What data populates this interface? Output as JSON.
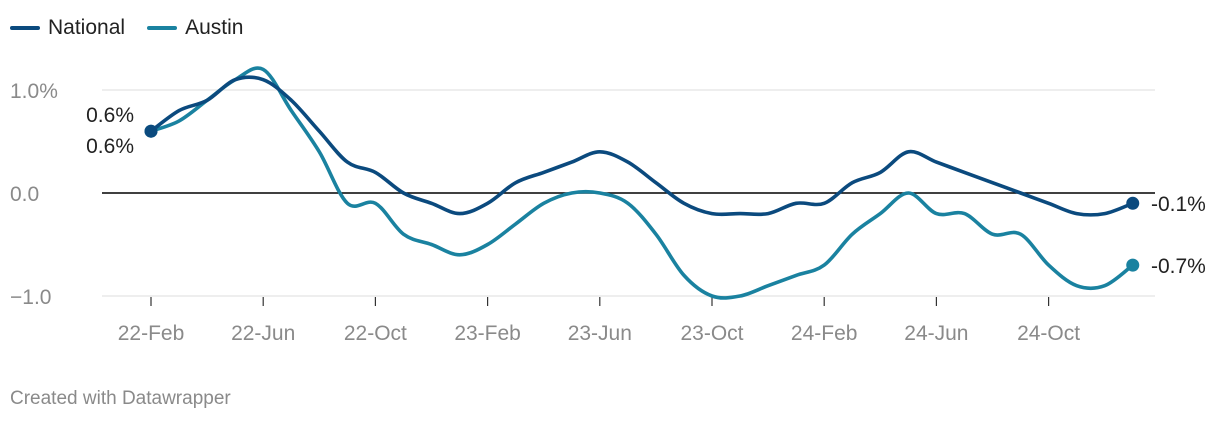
{
  "chart_data": {
    "type": "line",
    "x_tick_labels": [
      "22-Feb",
      "22-Jun",
      "22-Oct",
      "23-Feb",
      "23-Jun",
      "23-Oct",
      "24-Feb",
      "24-Jun",
      "24-Oct"
    ],
    "y_tick_labels": [
      "1.0%",
      "0.0",
      "−1.0"
    ],
    "y_ticks": [
      1.0,
      0.0,
      -1.0
    ],
    "ylim": [
      -1.0,
      1.25
    ],
    "xlim": [
      0,
      35.5
    ],
    "grid": true,
    "legend_position": "top-left",
    "series": [
      {
        "name": "National",
        "color": "#0b4a7e",
        "x": [
          0,
          1,
          2,
          3,
          4,
          5,
          6,
          7,
          8,
          9,
          10,
          11,
          12,
          13,
          14,
          15,
          16,
          17,
          18,
          19,
          20,
          21,
          22,
          23,
          24,
          25,
          26,
          27,
          28,
          29,
          30,
          31,
          32,
          33,
          34,
          35
        ],
        "values": [
          0.6,
          0.8,
          0.9,
          1.1,
          1.1,
          0.9,
          0.6,
          0.3,
          0.2,
          0.0,
          -0.1,
          -0.2,
          -0.1,
          0.1,
          0.2,
          0.3,
          0.4,
          0.3,
          0.1,
          -0.1,
          -0.2,
          -0.2,
          -0.2,
          -0.1,
          -0.1,
          0.1,
          0.2,
          0.4,
          0.3,
          0.2,
          0.1,
          0.0,
          -0.1,
          -0.2,
          -0.2,
          -0.1
        ]
      },
      {
        "name": "Austin",
        "color": "#1a82a0",
        "x": [
          0,
          1,
          2,
          3,
          4,
          5,
          6,
          7,
          8,
          9,
          10,
          11,
          12,
          13,
          14,
          15,
          16,
          17,
          18,
          19,
          20,
          21,
          22,
          23,
          24,
          25,
          26,
          27,
          28,
          29,
          30,
          31,
          32,
          33,
          34,
          35
        ],
        "values": [
          0.6,
          0.7,
          0.9,
          1.1,
          1.2,
          0.8,
          0.4,
          -0.1,
          -0.1,
          -0.4,
          -0.5,
          -0.6,
          -0.5,
          -0.3,
          -0.1,
          0.0,
          0.0,
          -0.1,
          -0.4,
          -0.8,
          -1.0,
          -1.0,
          -0.9,
          -0.8,
          -0.7,
          -0.4,
          -0.2,
          0.0,
          -0.2,
          -0.2,
          -0.4,
          -0.4,
          -0.7,
          -0.9,
          -0.9,
          -0.7
        ]
      }
    ],
    "annotations": {
      "start_national": "0.6%",
      "start_austin": "0.6%",
      "end_national": "-0.1%",
      "end_austin": "-0.7%"
    }
  },
  "legend": {
    "items": [
      {
        "name": "National",
        "color": "#0b4a7e"
      },
      {
        "name": "Austin",
        "color": "#1a82a0"
      }
    ]
  },
  "footer": {
    "credit": "Created with Datawrapper"
  }
}
